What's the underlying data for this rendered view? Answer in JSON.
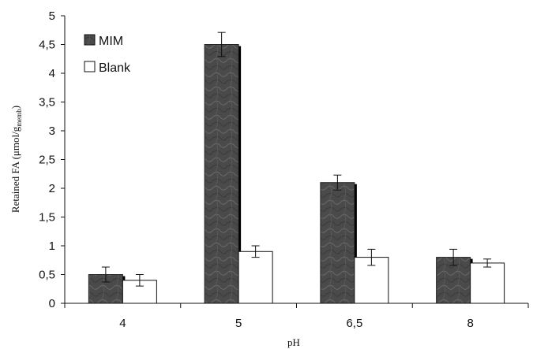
{
  "chart_data": {
    "type": "bar",
    "categories": [
      "4",
      "5",
      "6,5",
      "8"
    ],
    "series": [
      {
        "name": "MIM",
        "values": [
          0.5,
          4.5,
          2.1,
          0.8
        ],
        "errors": [
          0.13,
          0.21,
          0.13,
          0.14
        ],
        "color": "#4a4a4a"
      },
      {
        "name": "Blank",
        "values": [
          0.4,
          0.9,
          0.8,
          0.7
        ],
        "errors": [
          0.1,
          0.1,
          0.14,
          0.07
        ],
        "color": "#ffffff"
      }
    ],
    "xlabel": "pH",
    "ylabel_main": "Retained FA (μmol/g",
    "ylabel_sub": "memb",
    "ylabel_close": ")",
    "ylim": [
      0,
      5
    ],
    "yticks": [
      "0",
      "0,5",
      "1",
      "1,5",
      "2",
      "2,5",
      "3",
      "3,5",
      "4",
      "4,5",
      "5"
    ],
    "ytick_values": [
      0,
      0.5,
      1,
      1.5,
      2,
      2.5,
      3,
      3.5,
      4,
      4.5,
      5
    ],
    "legend_position": "top-left",
    "grid": false
  }
}
